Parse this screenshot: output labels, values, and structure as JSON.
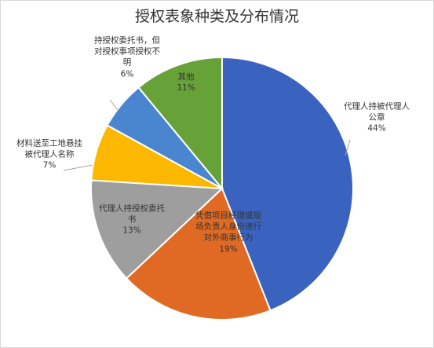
{
  "chart_data": {
    "type": "pie",
    "title": "授权表象种类及分布情况",
    "slices": [
      {
        "name": "代理人持被代理人公章",
        "label_lines": [
          "代理人持被代理人",
          "公章"
        ],
        "percent_text": "44%",
        "value": 44,
        "color": "#3a63bf",
        "label_color": "#333333"
      },
      {
        "name": "凭借项目经理或现场负责人身份进行对外商事行为",
        "label_lines": [
          "凭借项目经理或现",
          "场负责人身份进行",
          "对外商事行为"
        ],
        "percent_text": "19%",
        "value": 19,
        "color": "#e06a24",
        "label_color": "#333333"
      },
      {
        "name": "代理人持授权委托书",
        "label_lines": [
          "代理人持授权委托",
          "书"
        ],
        "percent_text": "13%",
        "value": 13,
        "color": "#9e9e9e",
        "label_color": "#333333"
      },
      {
        "name": "材料送至工地悬挂被代理人名称",
        "label_lines": [
          "材料送至工地悬挂",
          "被代理人名称"
        ],
        "percent_text": "7%",
        "value": 7,
        "color": "#fcb800",
        "label_color": "#333333"
      },
      {
        "name": "持授权委托书，但对授权事项授权不明",
        "label_lines": [
          "持授权委托书，但",
          "对授权事项授权不",
          "明"
        ],
        "percent_text": "6%",
        "value": 6,
        "color": "#4a86d0",
        "label_color": "#333333"
      },
      {
        "name": "其他",
        "label_lines": [
          "其他"
        ],
        "percent_text": "11%",
        "value": 11,
        "color": "#67a238",
        "label_color": "#333333"
      }
    ]
  }
}
